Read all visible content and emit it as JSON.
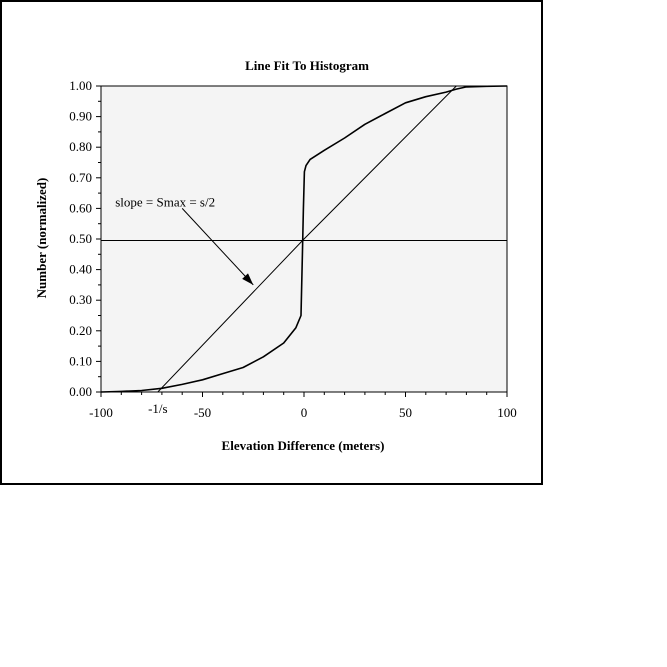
{
  "chart_data": {
    "type": "line",
    "title": "Line Fit To Histogram",
    "xlabel": "Elevation Difference (meters)",
    "ylabel": "Number (normalized)",
    "xlim": [
      -100,
      100
    ],
    "ylim": [
      0,
      1
    ],
    "x_ticks": [
      -100,
      -50,
      0,
      50,
      100
    ],
    "x_tick_labels": [
      "-100",
      "-50",
      "0",
      "50",
      "100"
    ],
    "x_extra_tick": {
      "x": -72,
      "label": "-1/s"
    },
    "y_ticks": [
      0,
      0.1,
      0.2,
      0.3,
      0.4,
      0.5,
      0.6,
      0.7,
      0.8,
      0.9,
      1.0
    ],
    "y_tick_labels": [
      "0.00",
      "0.10",
      "0.20",
      "0.30",
      "0.40",
      "0.50",
      "0.60",
      "0.70",
      "0.80",
      "0.90",
      "1.00"
    ],
    "grid": false,
    "plot_background": "#f4f4f4",
    "series": [
      {
        "kind": "cumulative-histogram",
        "color": "#000000",
        "points": [
          [
            -100,
            0
          ],
          [
            -90,
            0.002
          ],
          [
            -80,
            0.005
          ],
          [
            -70,
            0.012
          ],
          [
            -60,
            0.025
          ],
          [
            -50,
            0.04
          ],
          [
            -40,
            0.06
          ],
          [
            -30,
            0.08
          ],
          [
            -20,
            0.115
          ],
          [
            -10,
            0.16
          ],
          [
            -4,
            0.21
          ],
          [
            -1.5,
            0.25
          ],
          [
            -0.8,
            0.45
          ],
          [
            -0.3,
            0.6
          ],
          [
            0.2,
            0.72
          ],
          [
            1,
            0.74
          ],
          [
            3,
            0.76
          ],
          [
            10,
            0.79
          ],
          [
            20,
            0.83
          ],
          [
            30,
            0.875
          ],
          [
            40,
            0.91
          ],
          [
            50,
            0.945
          ],
          [
            60,
            0.965
          ],
          [
            70,
            0.98
          ],
          [
            75,
            0.99
          ],
          [
            80,
            0.997
          ],
          [
            90,
            0.999
          ],
          [
            100,
            1.0
          ]
        ]
      },
      {
        "kind": "fit-line",
        "color": "#000000",
        "points": [
          [
            -72,
            0
          ],
          [
            0,
            0.5
          ],
          [
            75,
            1.0
          ]
        ]
      },
      {
        "kind": "reference-line",
        "color": "#000000",
        "points": [
          [
            -100,
            0.495
          ],
          [
            100,
            0.495
          ]
        ]
      }
    ],
    "annotations": [
      {
        "text": "slope = Smax = s/2",
        "text_at": [
          -93,
          0.62
        ],
        "arrow_from": [
          -60,
          0.6
        ],
        "arrow_to": [
          -25,
          0.35
        ]
      }
    ]
  }
}
